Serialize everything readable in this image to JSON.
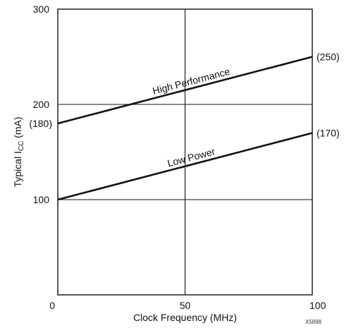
{
  "chart_data": {
    "type": "line",
    "title": "",
    "xlabel": "Clock Frequency (MHz)",
    "ylabel": {
      "prefix": "Typical I",
      "subscript": "CC",
      "suffix": " (mA)"
    },
    "xlim": [
      0,
      100
    ],
    "ylim": [
      0,
      300
    ],
    "x_ticks": [
      {
        "value": 0,
        "label": "0"
      },
      {
        "value": 50,
        "label": "50"
      },
      {
        "value": 100,
        "label": "100"
      }
    ],
    "y_ticks": [
      {
        "value": 100,
        "label": "100"
      },
      {
        "value": 200,
        "label": "200"
      },
      {
        "value": 300,
        "label": "300"
      }
    ],
    "grid": true,
    "series": [
      {
        "name": "High Performance",
        "x": [
          0,
          100
        ],
        "y": [
          180,
          250
        ],
        "end_labels": {
          "start": "(180)",
          "end": "(250)"
        }
      },
      {
        "name": "Low Power",
        "x": [
          0,
          100
        ],
        "y": [
          100,
          170
        ],
        "end_labels": {
          "start": "",
          "end": "(170)"
        }
      }
    ],
    "line_color": "#111111",
    "figure_id": "X5898"
  }
}
